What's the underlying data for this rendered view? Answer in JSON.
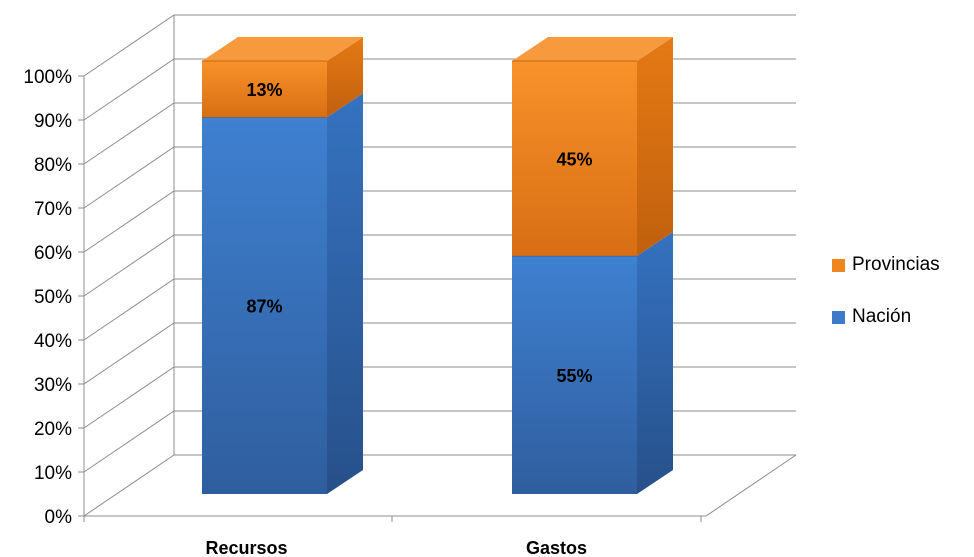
{
  "chart_data": {
    "type": "bar",
    "stacked": true,
    "three_d": true,
    "categories": [
      "Recursos",
      "Gastos"
    ],
    "series": [
      {
        "name": "Nación",
        "values": [
          87,
          55
        ],
        "labels": [
          "87%",
          "55%"
        ],
        "color": "#3e7ac8"
      },
      {
        "name": "Provincias",
        "values": [
          13,
          45
        ],
        "labels": [
          "13%",
          "45%"
        ],
        "color": "#f0871e"
      }
    ],
    "title": "",
    "xlabel": "",
    "ylabel": "",
    "ylim": [
      0,
      100
    ],
    "yticks": [
      "0%",
      "10%",
      "20%",
      "30%",
      "40%",
      "50%",
      "60%",
      "70%",
      "80%",
      "90%",
      "100%"
    ],
    "grid": true,
    "legend_position": "right"
  },
  "legend": {
    "items": [
      {
        "label": "Provincias",
        "color": "#f0871e"
      },
      {
        "label": "Nación",
        "color": "#3e7ac8"
      }
    ]
  }
}
